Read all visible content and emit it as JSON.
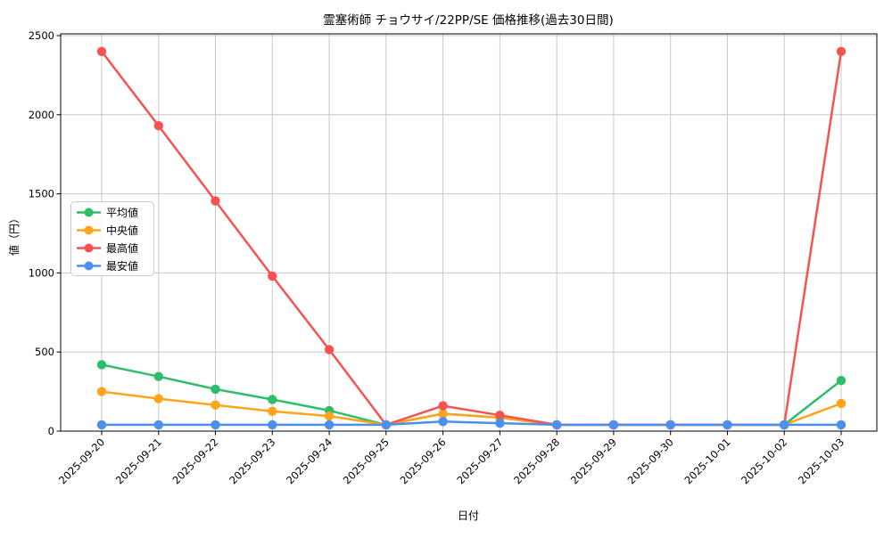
{
  "figure_title": "霊塞術師 チョウサイ/22PP/SE 価格推移(過去30日間)",
  "colors": {
    "average": "#2dbe6c",
    "median": "#ffa41b",
    "highest": "#f65350",
    "lowest": "#4b90f0",
    "grid": "#c9c9c9",
    "spine": "#000000",
    "legend_border": "#cccccc",
    "background": "#ffffff"
  },
  "chart_data": {
    "type": "line",
    "title": "霊塞術師 チョウサイ/22PP/SE 価格推移(過去30日間)",
    "xlabel": "日付",
    "ylabel": "値（円）",
    "ylim": [
      0,
      2500
    ],
    "yticks": [
      "0",
      "500",
      "1000",
      "1500",
      "2000",
      "2500"
    ],
    "ytick_values": [
      0,
      500,
      1000,
      1500,
      2000,
      2500
    ],
    "grid": true,
    "legend_position": "upper-left",
    "categories": [
      "2025-09-20",
      "2025-09-21",
      "2025-09-22",
      "2025-09-23",
      "2025-09-24",
      "2025-09-25",
      "2025-09-26",
      "2025-09-27",
      "2025-09-28",
      "2025-09-29",
      "2025-09-30",
      "2025-10-01",
      "2025-10-02",
      "2025-10-03"
    ],
    "series": [
      {
        "name": "平均値",
        "key": "average",
        "color": "#2dbe6c",
        "values": [
          420,
          345,
          265,
          200,
          130,
          40,
          110,
          85,
          40,
          40,
          40,
          40,
          40,
          320
        ]
      },
      {
        "name": "中央値",
        "key": "median",
        "color": "#ffa41b",
        "values": [
          250,
          205,
          165,
          125,
          95,
          40,
          110,
          85,
          40,
          40,
          40,
          40,
          40,
          175
        ]
      },
      {
        "name": "最高値",
        "key": "highest",
        "color": "#f65350",
        "values": [
          2400,
          1930,
          1455,
          980,
          515,
          40,
          160,
          100,
          40,
          40,
          40,
          40,
          40,
          2400
        ]
      },
      {
        "name": "最安値",
        "key": "lowest",
        "color": "#4b90f0",
        "values": [
          40,
          40,
          40,
          40,
          40,
          40,
          60,
          50,
          40,
          40,
          40,
          40,
          40,
          40
        ]
      }
    ]
  }
}
